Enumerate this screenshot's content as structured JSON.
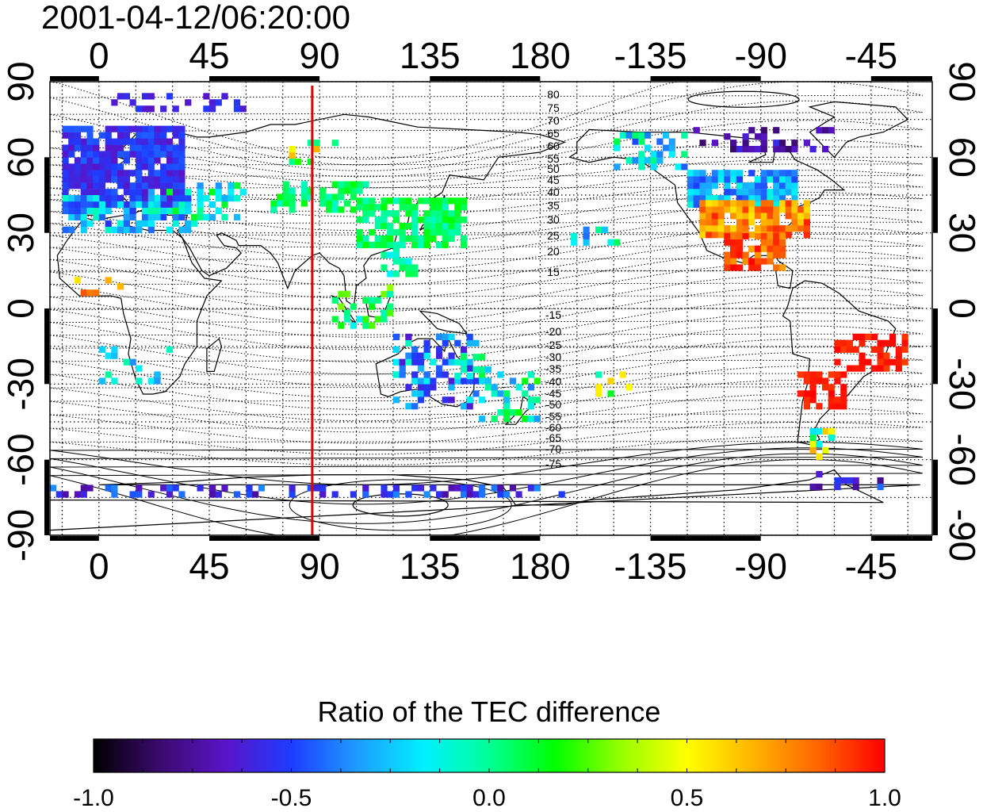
{
  "figure": {
    "timestamp": "2001-04-12/06:20:00",
    "top_lon_ticks": [
      "0",
      "45",
      "90",
      "135",
      "180",
      "-135",
      "-90",
      "-45"
    ],
    "bottom_lon_ticks": [
      "0",
      "45",
      "90",
      "135",
      "180",
      "-135",
      "-90",
      "-45"
    ],
    "left_lat_ticks": [
      "90",
      "60",
      "30",
      "0",
      "-30",
      "-60",
      "-90"
    ],
    "right_lat_ticks": [
      "90",
      "60",
      "30",
      "0",
      "-30",
      "-60",
      "-90"
    ],
    "magnetic_latitude_labels": [
      "80",
      "75",
      "70",
      "65",
      "60",
      "55",
      "50",
      "45",
      "40",
      "35",
      "30",
      "25",
      "20",
      "15",
      "-15",
      "-20",
      "-25",
      "-30",
      "-35",
      "-40",
      "-45",
      "-50",
      "-55",
      "-60",
      "-65",
      "-70",
      "-75"
    ],
    "red_meridian_lon": 87,
    "colors": {
      "meridian": "#e00000",
      "frame": "#000000"
    }
  },
  "colorbar": {
    "title": "Ratio of the TEC difference",
    "ticks": [
      "-1.0",
      "-0.5",
      "0.0",
      "0.5",
      "1.0"
    ],
    "range": [
      -1.0,
      1.0
    ],
    "colormap": [
      "#000000",
      "#3a0a6e",
      "#5a14c8",
      "#1e3cff",
      "#1e9bff",
      "#00f0ff",
      "#00ff96",
      "#00ff00",
      "#96ff00",
      "#ffff00",
      "#ffb400",
      "#ff6400",
      "#ff0000"
    ]
  }
}
